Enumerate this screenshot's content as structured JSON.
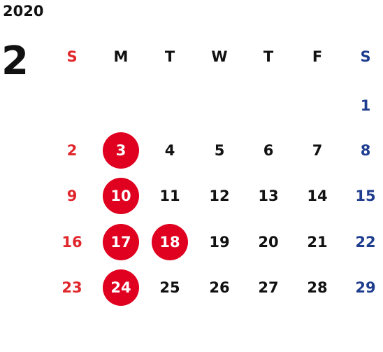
{
  "year": "2020",
  "month": "2",
  "colors": {
    "sunday": "#e0262b",
    "saturday": "#1f3d8f",
    "weekday": "#111111",
    "holiday_bg": "#e0001f",
    "holiday_fg": "#ffffff"
  },
  "weekdays": [
    "S",
    "M",
    "T",
    "W",
    "T",
    "F",
    "S"
  ],
  "weeks": [
    [
      null,
      null,
      null,
      null,
      null,
      null,
      1
    ],
    [
      2,
      3,
      4,
      5,
      6,
      7,
      8
    ],
    [
      9,
      10,
      11,
      12,
      13,
      14,
      15
    ],
    [
      16,
      17,
      18,
      19,
      20,
      21,
      22
    ],
    [
      23,
      24,
      25,
      26,
      27,
      28,
      29
    ]
  ],
  "highlighted_days": [
    3,
    10,
    17,
    18,
    24
  ]
}
